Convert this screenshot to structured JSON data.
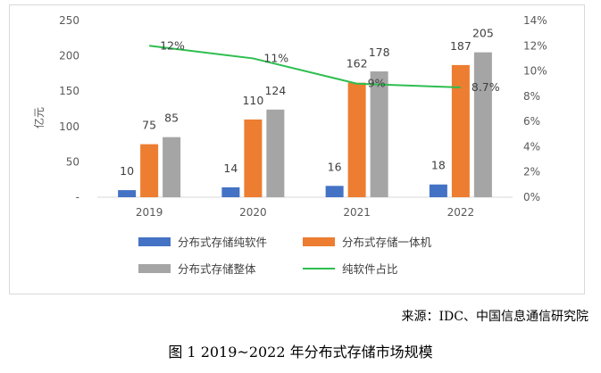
{
  "chart_data": {
    "type": "bar",
    "categories": [
      "2019",
      "2020",
      "2021",
      "2022"
    ],
    "series": [
      {
        "name": "分布式存储纯软件",
        "values": [
          10,
          14,
          16,
          18
        ],
        "labels": [
          "10",
          "14",
          "16",
          "18"
        ],
        "color": "#4472C4",
        "axis": "left",
        "kind": "bar"
      },
      {
        "name": "分布式存储一体机",
        "values": [
          75,
          110,
          162,
          187
        ],
        "labels": [
          "75",
          "110",
          "162",
          "187"
        ],
        "color": "#ED7D31",
        "axis": "left",
        "kind": "bar"
      },
      {
        "name": "分布式存储整体",
        "values": [
          85,
          124,
          178,
          205
        ],
        "labels": [
          "85",
          "124",
          "178",
          "205"
        ],
        "color": "#A5A5A5",
        "axis": "left",
        "kind": "bar"
      },
      {
        "name": "纯软件占比",
        "values": [
          12,
          11,
          9,
          8.7
        ],
        "labels": [
          "12%",
          "11%",
          "9%",
          "8.7%"
        ],
        "color": "#2DBE4F",
        "axis": "right",
        "kind": "line"
      }
    ],
    "ylabel": "亿元",
    "y_left": {
      "range": [
        0,
        250
      ],
      "tick_labels": [
        "-",
        "50",
        "100",
        "150",
        "200",
        "250"
      ]
    },
    "y_right": {
      "range": [
        0,
        14
      ],
      "tick_labels": [
        "0%",
        "2%",
        "4%",
        "6%",
        "8%",
        "10%",
        "12%",
        "14%"
      ]
    },
    "grid": false,
    "legend_position": "bottom"
  },
  "source": "来源：IDC、中国信息通信研究院",
  "caption": "图 1  2019~2022 年分布式存储市场规模"
}
